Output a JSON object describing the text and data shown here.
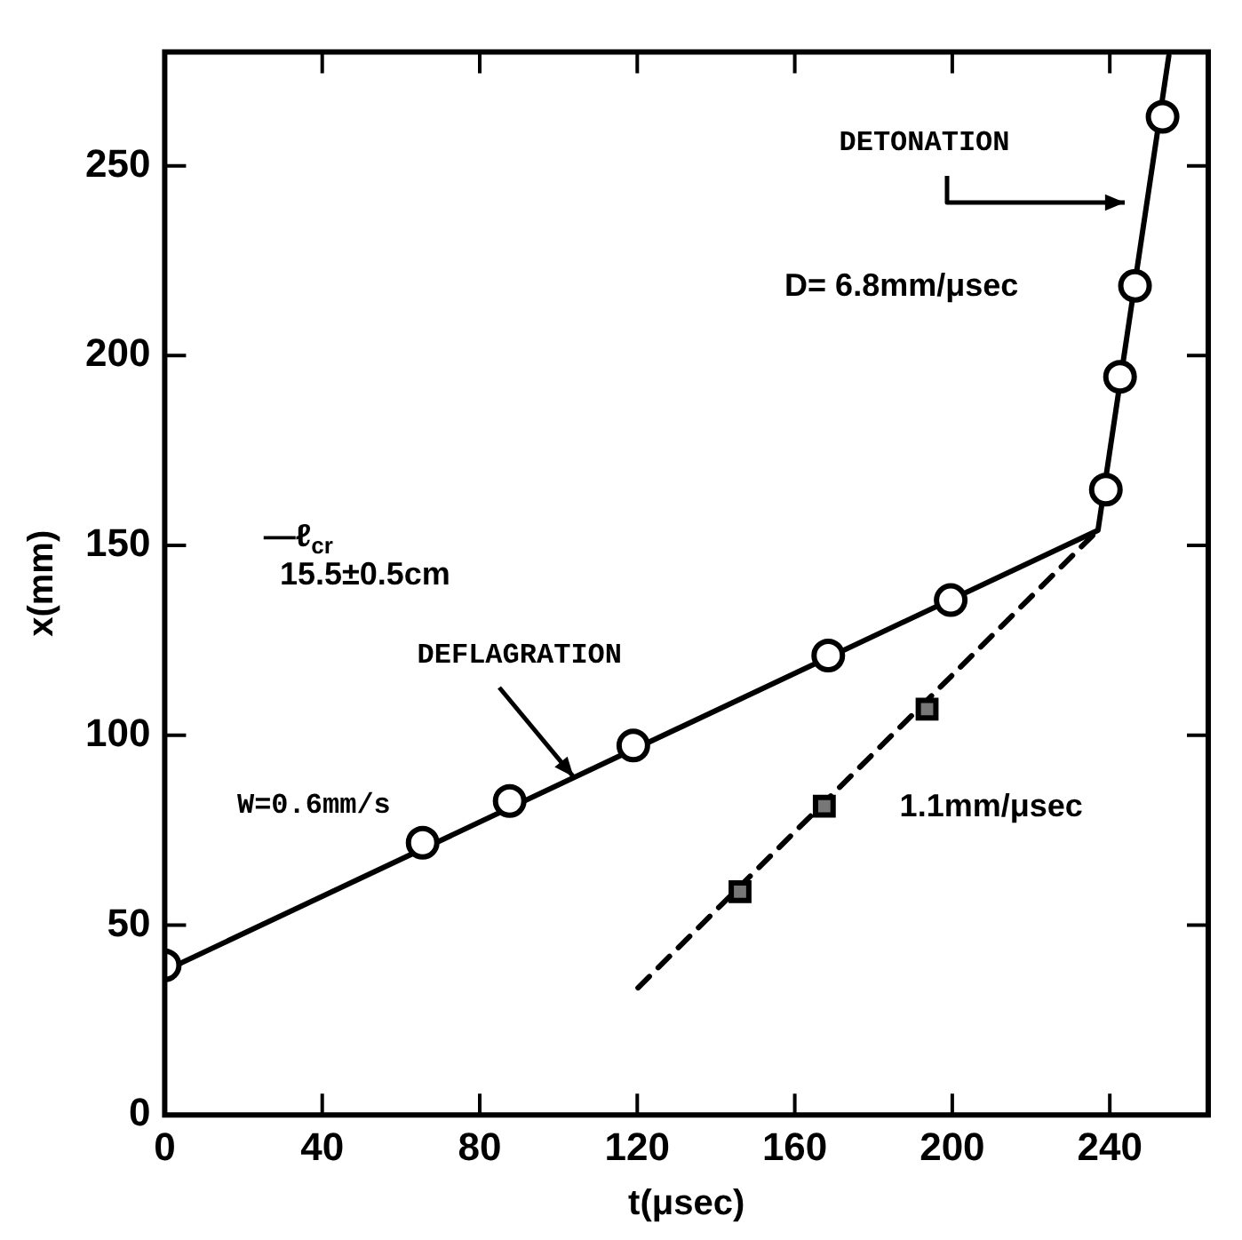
{
  "chart_data": {
    "type": "scatter",
    "xlabel": "t(μsec)",
    "ylabel": "x(mm)",
    "xlim": [
      0,
      265
    ],
    "xticks": [
      0,
      40,
      80,
      120,
      160,
      200,
      240
    ],
    "ylim": [
      0,
      280
    ],
    "yticks": [
      0,
      50,
      100,
      150,
      200,
      250
    ],
    "grid": false,
    "legend": false,
    "series": [
      {
        "type": "line",
        "color": "#000000",
        "marker": "none",
        "line_style": "solid",
        "x": [
          0,
          237,
          255
        ],
        "values": [
          38,
          154,
          279
        ]
      },
      {
        "type": "scatter",
        "color": "#000000",
        "marker": "circle",
        "x": [
          0,
          65.5,
          87.6,
          119,
          168.5,
          199.6,
          239,
          242.6,
          246.4,
          253.4
        ],
        "values": [
          39.4,
          71.7,
          82.7,
          97.3,
          121,
          135.6,
          164.7,
          194.4,
          218.4,
          262.9
        ]
      },
      {
        "type": "line",
        "color": "#000000",
        "marker": "none",
        "line_style": "dashed",
        "x": [
          120.2,
          237
        ],
        "values": [
          33.5,
          154
        ]
      },
      {
        "type": "scatter",
        "color": "#000000",
        "marker": "square",
        "x": [
          146.1,
          167.5,
          193.6
        ],
        "values": [
          58.8,
          81.3,
          106.9
        ]
      }
    ],
    "annotations": [
      "DETONATION",
      "D= 6.8mm/μsec",
      {
        "text": "DEFLAGRATION",
        "x": 104,
        "y": 89
      },
      "W=0.6mm/s",
      "—ℓ$_{cr}$",
      "15.5±0.5cm",
      "1.1mm/μsec"
    ]
  }
}
